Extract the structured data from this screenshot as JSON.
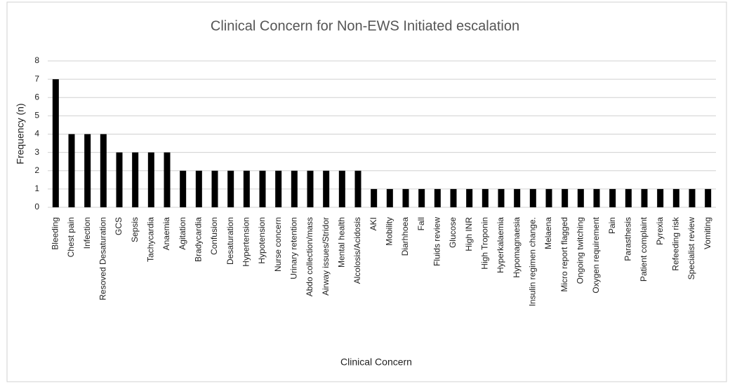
{
  "chart_data": {
    "type": "bar",
    "title": "Clinical Concern for Non-EWS Initiated escalation",
    "x_label": "Clinical Concern",
    "y_label": "Frequency (n)",
    "categories": [
      "Bleeding",
      "Chest pain",
      "Infection",
      "Resoved Desaturation",
      "GCS",
      "Sepsis",
      "Tachycardia",
      "Anaemia",
      "Agitation",
      "Bradycardia",
      "Confusion",
      "Desaturation",
      "Hypertension",
      "Hypotension",
      "Nurse concern",
      "Urinary retention",
      "Abdo collection/mass",
      "Airway issues/Stridor",
      "Mental health",
      "Alcolosis/Acidosis",
      "AKI",
      "Mobility",
      "Diarhhoea",
      "Fall",
      "Fluids review",
      "Glucose",
      "High INR",
      "High Troponin",
      "Hyperkalaemia",
      "Hypomagnaesia",
      "Insulin regimen change.",
      "Melaena",
      "Micro report flagged",
      "Ongoing twitching",
      "Oxygen requirement",
      "Pain",
      "Parasthesis",
      "Patient complaint",
      "Pyrexia",
      "Refeeding risk",
      "Specialist review",
      "Vomiting"
    ],
    "values": [
      7,
      4,
      4,
      4,
      3,
      3,
      3,
      3,
      2,
      2,
      2,
      2,
      2,
      2,
      2,
      2,
      2,
      2,
      2,
      2,
      1,
      1,
      1,
      1,
      1,
      1,
      1,
      1,
      1,
      1,
      1,
      1,
      1,
      1,
      1,
      1,
      1,
      1,
      1,
      1,
      1,
      1
    ],
    "color": "#000000",
    "ylim": [
      0,
      8
    ],
    "yticks": [
      0,
      1,
      2,
      3,
      4,
      5,
      6,
      7,
      8
    ],
    "grid": true
  }
}
